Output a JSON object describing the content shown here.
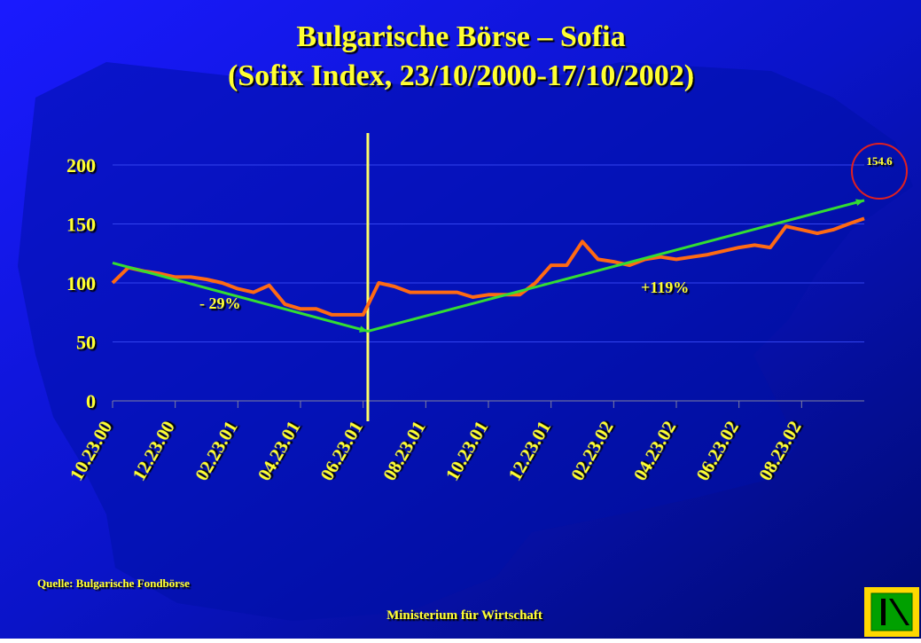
{
  "chart_data": {
    "type": "line",
    "title": "Bulgarische Börse – Sofia",
    "subtitle": "(Sofix Index, 23/10/2000-17/10/2002)",
    "categories": [
      "10.23.00",
      null,
      null,
      null,
      "12.23.00",
      null,
      null,
      null,
      "02.23.01",
      null,
      null,
      null,
      "04.23.01",
      null,
      null,
      null,
      "06.23.01",
      null,
      null,
      null,
      "08.23.01",
      null,
      null,
      null,
      "10.23.01",
      null,
      null,
      null,
      "12.23.01",
      null,
      null,
      null,
      "02.23.02",
      null,
      null,
      null,
      "04.23.02",
      null,
      null,
      null,
      "06.23.02",
      null,
      null,
      null,
      "08.23.02",
      null,
      null,
      null,
      null
    ],
    "series": [
      {
        "name": "Sofix",
        "color": "#ff6a13",
        "values": [
          100,
          113,
          110,
          108,
          105,
          105,
          103,
          100,
          95,
          92,
          98,
          82,
          78,
          78,
          73,
          73,
          73,
          100,
          97,
          92,
          92,
          92,
          92,
          88,
          90,
          90,
          90,
          100,
          115,
          115,
          135,
          120,
          118,
          115,
          120,
          122,
          120,
          122,
          124,
          127,
          130,
          132,
          130,
          148,
          145,
          142,
          145,
          150,
          154.6
        ]
      }
    ],
    "trend": {
      "color": "#33dd33",
      "x_index": [
        0,
        16.3,
        48
      ],
      "values": [
        117,
        59,
        170
      ]
    },
    "ylim": [
      0,
      200
    ],
    "yticks": [
      0,
      50,
      100,
      150,
      200
    ],
    "grid": true,
    "annotations": [
      "- 29%",
      "+119%",
      "154.6"
    ],
    "source": "Quelle: Bulgarische Fondbörse",
    "footer": "Ministerium für Wirtschaft"
  }
}
